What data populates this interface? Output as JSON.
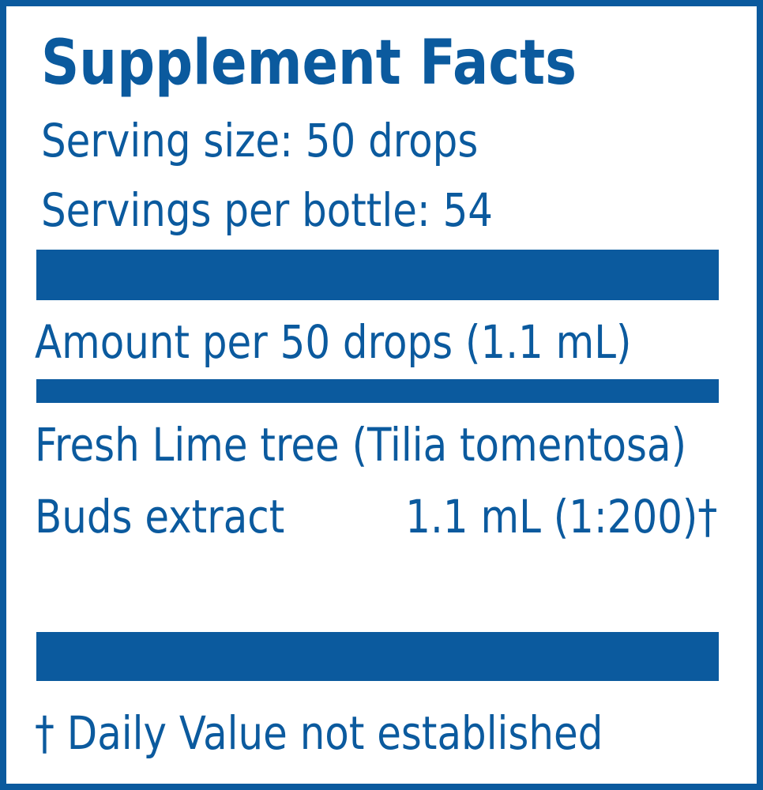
{
  "label": {
    "title": "Supplement Facts",
    "serving_size": "Serving size: 50 drops",
    "servings_per_bottle": "Servings per bottle: 54",
    "amount_per": "Amount per 50 drops (1.1 mL)",
    "ingredients": [
      {
        "name_line1": "Fresh Lime tree (Tilia tomentosa)",
        "name_line2": "Buds extract",
        "amount": "1.1 mL (1:200)†"
      }
    ],
    "footnote": "† Daily Value not established",
    "color": "#0b5a9e"
  }
}
